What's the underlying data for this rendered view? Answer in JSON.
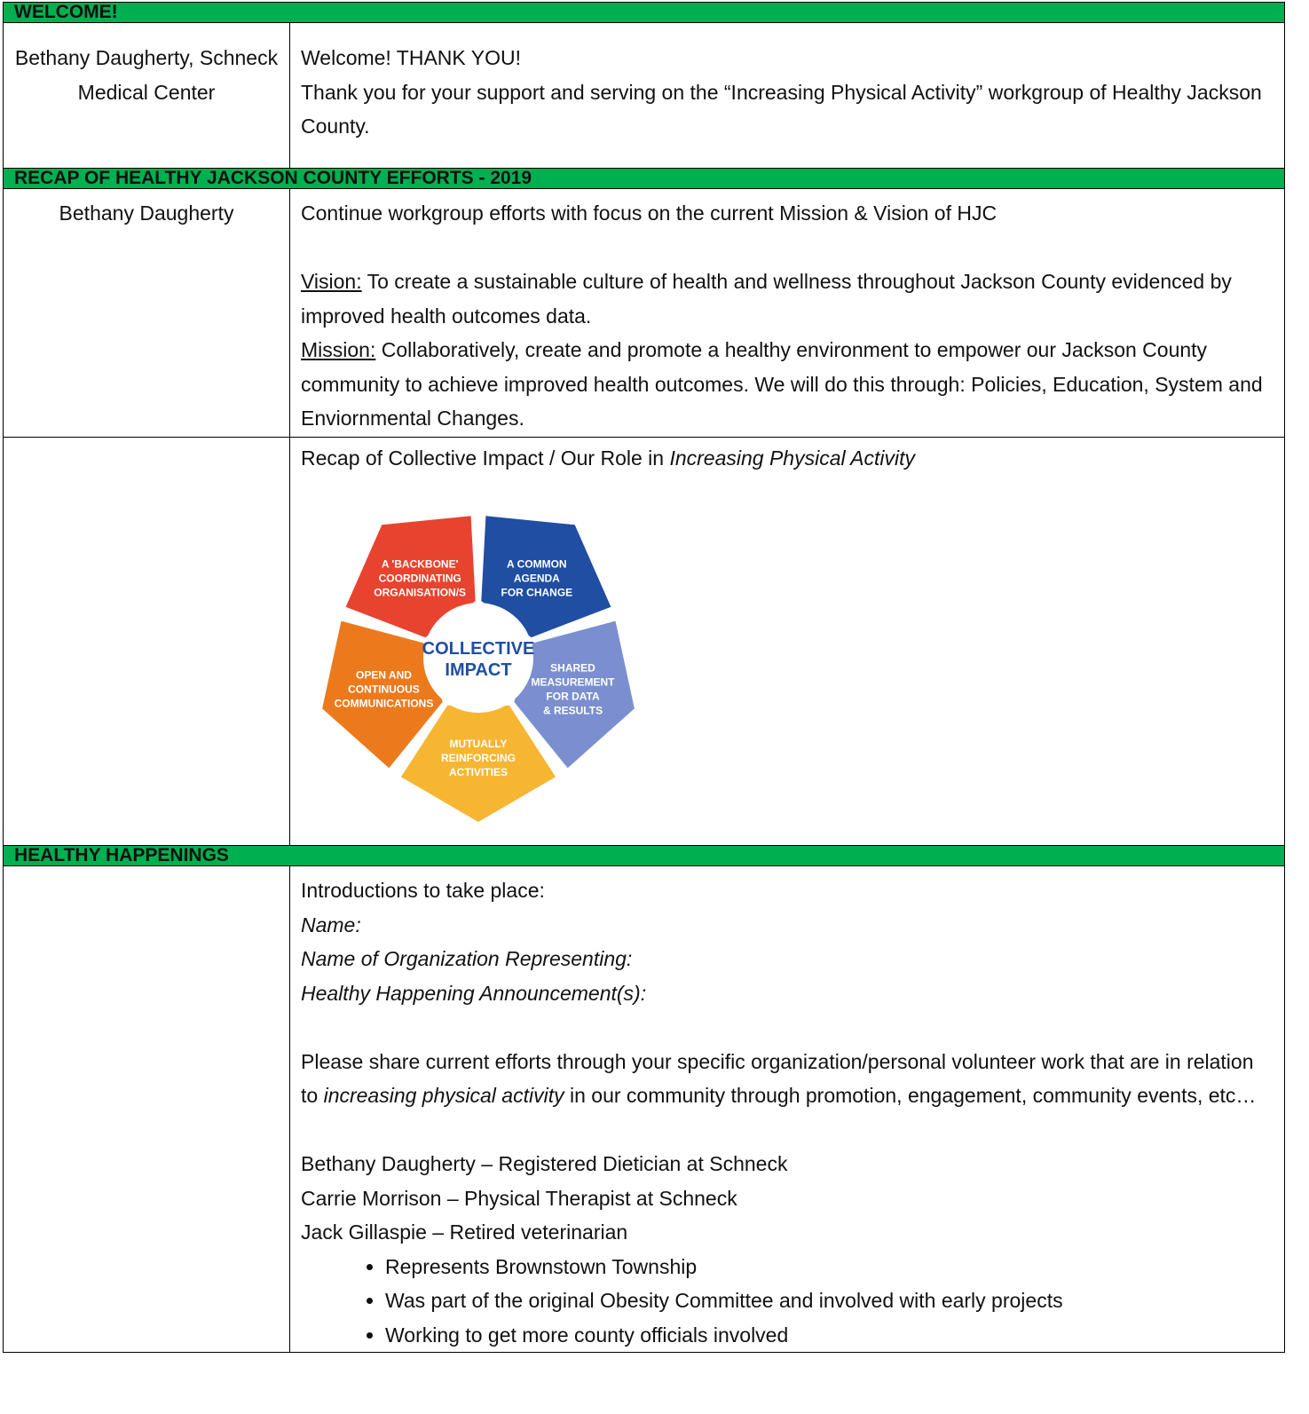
{
  "sections": [
    {
      "heading": "WELCOME!",
      "presenter": "Bethany Daugherty, Schneck Medical Center",
      "lines": [
        "Welcome!  THANK YOU!",
        "Thank you for your support and serving on the “Increasing Physical Activity” workgroup of Healthy Jackson County."
      ]
    },
    {
      "heading": "RECAP OF HEALTHY JACKSON COUNTY EFFORTS - 2019",
      "presenter": "Bethany Daugherty",
      "intro": "Continue workgroup efforts with focus on the current Mission & Vision of HJC",
      "vision": {
        "label": "Vision:",
        "text": "To create a sustainable culture of health and wellness throughout Jackson County evidenced by improved health outcomes data."
      },
      "mission": {
        "label": "Mission:",
        "text": "Collaboratively, create and promote a healthy environment to empower our Jackson County community to achieve improved health outcomes.  We will do this through:  Policies, Education, System and Enviornmental Changes."
      },
      "recap": {
        "text": "Recap of Collective Impact / Our Role in",
        "emphasis": "Increasing Physical Activity"
      },
      "diagram": {
        "center": [
          "COLLECTIVE",
          "IMPACT"
        ],
        "segments": [
          {
            "color": "#e8432f",
            "lines": [
              "A 'BACKBONE'",
              "COORDINATING",
              "ORGANISATION/S"
            ]
          },
          {
            "color": "#1f4ea3",
            "lines": [
              "A COMMON",
              "AGENDA",
              "FOR CHANGE"
            ]
          },
          {
            "color": "#7b8fd0",
            "lines": [
              "SHARED",
              "MEASUREMENT",
              "FOR DATA",
              "& RESULTS"
            ]
          },
          {
            "color": "#f7b632",
            "lines": [
              "MUTUALLY",
              "REINFORCING",
              "ACTIVITIES"
            ]
          },
          {
            "color": "#ec7a1c",
            "lines": [
              "OPEN AND",
              "CONTINUOUS",
              "COMMUNICATIONS"
            ]
          }
        ]
      }
    },
    {
      "heading": "HEALTHY HAPPENINGS",
      "intro": "Introductions to take place:",
      "prompts": [
        "Name:",
        "Name of Organization Representing:",
        "Healthy Happening Announcement(s):"
      ],
      "share": {
        "before": "Please share current efforts through your specific organization/personal volunteer work that are in relation to",
        "emphasis": "increasing physical activity",
        "after": "in our community through promotion, engagement, community events, etc…"
      },
      "members": [
        "Bethany Daugherty – Registered Dietician at Schneck",
        "Carrie Morrison – Physical Therapist at Schneck",
        "Jack Gillaspie – Retired veterinarian"
      ],
      "bullets": [
        "Represents Brownstown Township",
        "Was part of the original Obesity Committee and involved with early projects",
        "Working to get more county officials involved"
      ]
    }
  ]
}
